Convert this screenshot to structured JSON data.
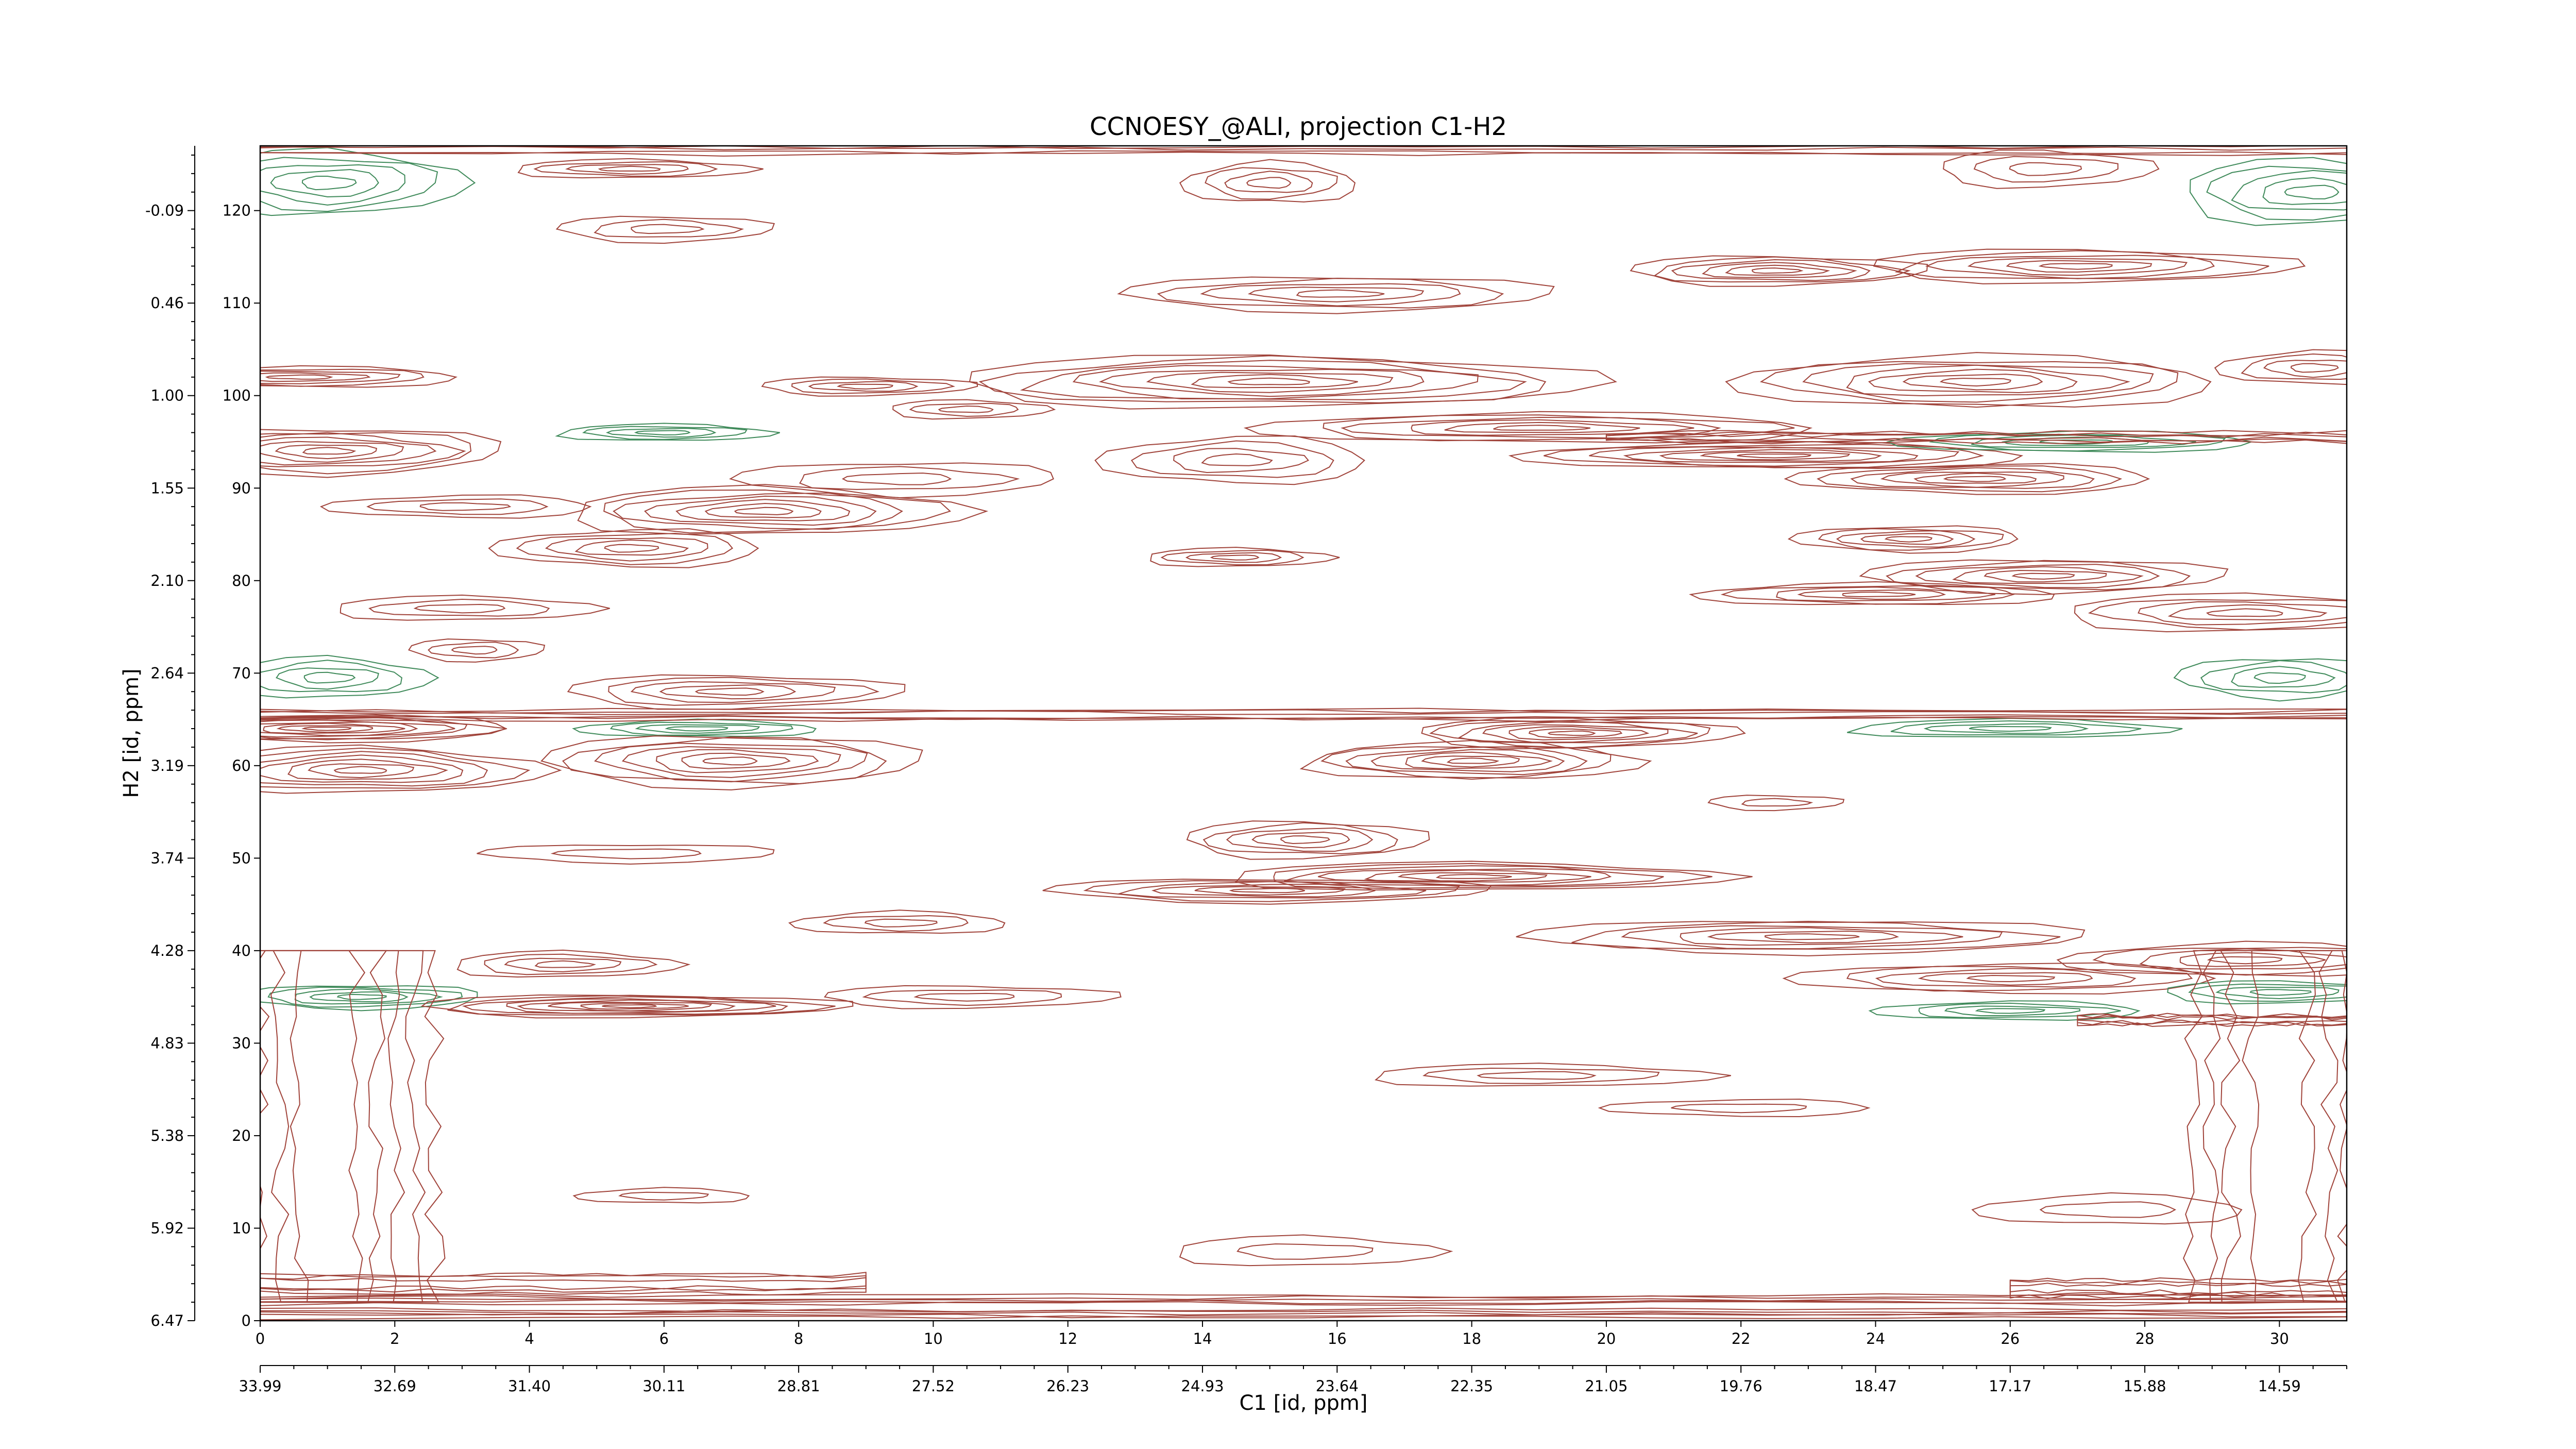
{
  "chart_data": {
    "type": "contour",
    "title": "CCNOESY_@ALI, projection C1-H2",
    "xlabel": "C1 [id, ppm]",
    "ylabel": "H2 [id, ppm]",
    "xlim": [
      0,
      31
    ],
    "ylim": [
      0,
      127
    ],
    "x_index_ticks": [
      0,
      2,
      4,
      6,
      8,
      10,
      12,
      14,
      16,
      18,
      20,
      22,
      24,
      26,
      28,
      30
    ],
    "x_ppm_ticks": [
      {
        "x": 0,
        "label": "33.99"
      },
      {
        "x": 2,
        "label": "32.69"
      },
      {
        "x": 4,
        "label": "31.40"
      },
      {
        "x": 6,
        "label": "30.11"
      },
      {
        "x": 8,
        "label": "28.81"
      },
      {
        "x": 10,
        "label": "27.52"
      },
      {
        "x": 12,
        "label": "26.23"
      },
      {
        "x": 14,
        "label": "24.93"
      },
      {
        "x": 16,
        "label": "23.64"
      },
      {
        "x": 18,
        "label": "22.35"
      },
      {
        "x": 20,
        "label": "21.05"
      },
      {
        "x": 22,
        "label": "19.76"
      },
      {
        "x": 24,
        "label": "18.47"
      },
      {
        "x": 26,
        "label": "17.17"
      },
      {
        "x": 28,
        "label": "15.88"
      },
      {
        "x": 30,
        "label": "14.59"
      }
    ],
    "y_index_ticks": [
      0,
      10,
      20,
      30,
      40,
      50,
      60,
      70,
      80,
      90,
      100,
      110,
      120
    ],
    "y_ppm_ticks": [
      {
        "y": 0,
        "label": "6.47"
      },
      {
        "y": 10,
        "label": "5.92"
      },
      {
        "y": 20,
        "label": "5.38"
      },
      {
        "y": 30,
        "label": "4.83"
      },
      {
        "y": 40,
        "label": "4.28"
      },
      {
        "y": 50,
        "label": "3.74"
      },
      {
        "y": 60,
        "label": "3.19"
      },
      {
        "y": 70,
        "label": "2.64"
      },
      {
        "y": 80,
        "label": "2.10"
      },
      {
        "y": 90,
        "label": "1.55"
      },
      {
        "y": 100,
        "label": "1.00"
      },
      {
        "y": 110,
        "label": "0.46"
      },
      {
        "y": 120,
        "label": "-0.09"
      }
    ],
    "colors": {
      "positive": "#a0433a",
      "negative": "#3f8a5a"
    },
    "peaks": [
      {
        "x": 1.0,
        "y": 94.0,
        "rx": 2.6,
        "ry": 2.5,
        "levels": 7,
        "sign": "positive"
      },
      {
        "x": 0.6,
        "y": 102.0,
        "rx": 2.4,
        "ry": 1.1,
        "levels": 5,
        "sign": "positive"
      },
      {
        "x": 1.0,
        "y": 64.0,
        "rx": 2.8,
        "ry": 1.4,
        "levels": 8,
        "sign": "positive"
      },
      {
        "x": 1.5,
        "y": 59.5,
        "rx": 2.7,
        "ry": 2.5,
        "levels": 7,
        "sign": "positive"
      },
      {
        "x": 1.0,
        "y": 123.0,
        "rx": 2.0,
        "ry": 3.5,
        "levels": 5,
        "sign": "negative"
      },
      {
        "x": 1.0,
        "y": 69.5,
        "rx": 1.5,
        "ry": 2.2,
        "levels": 4,
        "sign": "negative"
      },
      {
        "x": 1.5,
        "y": 35.0,
        "rx": 1.8,
        "ry": 1.3,
        "levels": 5,
        "sign": "negative"
      },
      {
        "x": 5.5,
        "y": 34.0,
        "rx": 3.2,
        "ry": 1.2,
        "levels": 8,
        "sign": "positive"
      },
      {
        "x": 3.2,
        "y": 72.5,
        "rx": 1.0,
        "ry": 1.2,
        "levels": 3,
        "sign": "positive"
      },
      {
        "x": 4.5,
        "y": 38.5,
        "rx": 1.7,
        "ry": 1.4,
        "levels": 4,
        "sign": "positive"
      },
      {
        "x": 6.0,
        "y": 96.0,
        "rx": 1.6,
        "ry": 0.9,
        "levels": 4,
        "sign": "negative"
      },
      {
        "x": 6.5,
        "y": 64.0,
        "rx": 1.8,
        "ry": 0.9,
        "levels": 4,
        "sign": "negative"
      },
      {
        "x": 7.0,
        "y": 60.5,
        "rx": 2.8,
        "ry": 2.8,
        "levels": 7,
        "sign": "positive"
      },
      {
        "x": 7.5,
        "y": 87.5,
        "rx": 3.0,
        "ry": 2.6,
        "levels": 7,
        "sign": "positive"
      },
      {
        "x": 5.5,
        "y": 83.5,
        "rx": 2.0,
        "ry": 2.0,
        "levels": 5,
        "sign": "positive"
      },
      {
        "x": 7.0,
        "y": 68.0,
        "rx": 2.5,
        "ry": 1.8,
        "levels": 5,
        "sign": "positive"
      },
      {
        "x": 15.0,
        "y": 101.5,
        "rx": 4.8,
        "ry": 2.8,
        "levels": 8,
        "sign": "positive"
      },
      {
        "x": 16.0,
        "y": 111.0,
        "rx": 3.2,
        "ry": 1.9,
        "levels": 5,
        "sign": "positive"
      },
      {
        "x": 14.5,
        "y": 93.0,
        "rx": 2.0,
        "ry": 2.5,
        "levels": 4,
        "sign": "positive"
      },
      {
        "x": 14.5,
        "y": 82.5,
        "rx": 1.4,
        "ry": 1.0,
        "levels": 4,
        "sign": "positive"
      },
      {
        "x": 19.0,
        "y": 96.5,
        "rx": 4.2,
        "ry": 1.6,
        "levels": 6,
        "sign": "positive"
      },
      {
        "x": 18.0,
        "y": 60.5,
        "rx": 2.5,
        "ry": 2.0,
        "levels": 7,
        "sign": "positive"
      },
      {
        "x": 19.5,
        "y": 63.5,
        "rx": 2.4,
        "ry": 1.6,
        "levels": 7,
        "sign": "positive"
      },
      {
        "x": 18.0,
        "y": 48.0,
        "rx": 3.8,
        "ry": 1.5,
        "levels": 7,
        "sign": "positive"
      },
      {
        "x": 15.0,
        "y": 46.5,
        "rx": 3.3,
        "ry": 1.3,
        "levels": 6,
        "sign": "positive"
      },
      {
        "x": 15.5,
        "y": 52.0,
        "rx": 1.8,
        "ry": 2.0,
        "levels": 5,
        "sign": "positive"
      },
      {
        "x": 22.5,
        "y": 113.5,
        "rx": 2.2,
        "ry": 1.6,
        "levels": 6,
        "sign": "positive"
      },
      {
        "x": 27.0,
        "y": 114.0,
        "rx": 3.2,
        "ry": 1.8,
        "levels": 6,
        "sign": "positive"
      },
      {
        "x": 25.5,
        "y": 101.5,
        "rx": 3.6,
        "ry": 2.8,
        "levels": 7,
        "sign": "positive"
      },
      {
        "x": 22.5,
        "y": 93.5,
        "rx": 3.8,
        "ry": 1.4,
        "levels": 7,
        "sign": "positive"
      },
      {
        "x": 25.5,
        "y": 91.0,
        "rx": 2.7,
        "ry": 1.6,
        "levels": 6,
        "sign": "positive"
      },
      {
        "x": 27.0,
        "y": 95.0,
        "rx": 2.7,
        "ry": 1.1,
        "levels": 5,
        "sign": "negative"
      },
      {
        "x": 24.5,
        "y": 84.5,
        "rx": 1.7,
        "ry": 1.4,
        "levels": 5,
        "sign": "positive"
      },
      {
        "x": 26.5,
        "y": 80.5,
        "rx": 2.7,
        "ry": 1.8,
        "levels": 6,
        "sign": "positive"
      },
      {
        "x": 24.0,
        "y": 78.5,
        "rx": 2.7,
        "ry": 1.2,
        "levels": 5,
        "sign": "positive"
      },
      {
        "x": 29.5,
        "y": 76.5,
        "rx": 2.8,
        "ry": 2.0,
        "levels": 5,
        "sign": "positive"
      },
      {
        "x": 23.0,
        "y": 41.5,
        "rx": 4.2,
        "ry": 1.8,
        "levels": 6,
        "sign": "positive"
      },
      {
        "x": 26.0,
        "y": 37.0,
        "rx": 3.2,
        "ry": 1.6,
        "levels": 5,
        "sign": "positive"
      },
      {
        "x": 26.0,
        "y": 33.5,
        "rx": 2.0,
        "ry": 1.0,
        "levels": 4,
        "sign": "negative"
      },
      {
        "x": 29.5,
        "y": 39.0,
        "rx": 2.7,
        "ry": 1.8,
        "levels": 5,
        "sign": "positive"
      },
      {
        "x": 30.0,
        "y": 35.5,
        "rx": 1.8,
        "ry": 1.2,
        "levels": 4,
        "sign": "negative"
      },
      {
        "x": 26.0,
        "y": 64.0,
        "rx": 2.4,
        "ry": 1.0,
        "levels": 4,
        "sign": "negative"
      },
      {
        "x": 30.0,
        "y": 69.5,
        "rx": 1.5,
        "ry": 2.2,
        "levels": 4,
        "sign": "negative"
      },
      {
        "x": 30.5,
        "y": 122.0,
        "rx": 2.0,
        "ry": 3.5,
        "levels": 5,
        "sign": "negative"
      },
      {
        "x": 30.5,
        "y": 103.0,
        "rx": 1.4,
        "ry": 1.8,
        "levels": 4,
        "sign": "positive"
      },
      {
        "x": 9.0,
        "y": 101.0,
        "rx": 1.6,
        "ry": 1.0,
        "levels": 4,
        "sign": "positive"
      },
      {
        "x": 10.5,
        "y": 98.5,
        "rx": 1.2,
        "ry": 1.0,
        "levels": 3,
        "sign": "positive"
      },
      {
        "x": 15.0,
        "y": 123.0,
        "rx": 1.3,
        "ry": 2.2,
        "levels": 4,
        "sign": "positive"
      },
      {
        "x": 6.0,
        "y": 118.0,
        "rx": 1.6,
        "ry": 1.4,
        "levels": 3,
        "sign": "positive"
      },
      {
        "x": 5.5,
        "y": 124.5,
        "rx": 1.8,
        "ry": 1.0,
        "levels": 4,
        "sign": "positive"
      },
      {
        "x": 26.5,
        "y": 124.5,
        "rx": 1.6,
        "ry": 2.0,
        "levels": 3,
        "sign": "positive"
      },
      {
        "x": 3.0,
        "y": 77.0,
        "rx": 2.0,
        "ry": 1.3,
        "levels": 3,
        "sign": "positive"
      },
      {
        "x": 3.0,
        "y": 88.0,
        "rx": 2.0,
        "ry": 1.2,
        "levels": 3,
        "sign": "positive"
      },
      {
        "x": 9.5,
        "y": 91.0,
        "rx": 2.4,
        "ry": 1.8,
        "levels": 3,
        "sign": "positive"
      },
      {
        "x": 9.5,
        "y": 43.0,
        "rx": 1.6,
        "ry": 1.2,
        "levels": 3,
        "sign": "positive"
      },
      {
        "x": 10.5,
        "y": 35.0,
        "rx": 2.2,
        "ry": 1.2,
        "levels": 3,
        "sign": "positive"
      },
      {
        "x": 19.0,
        "y": 26.5,
        "rx": 2.6,
        "ry": 1.2,
        "levels": 3,
        "sign": "positive"
      },
      {
        "x": 22.0,
        "y": 23.0,
        "rx": 2.0,
        "ry": 0.9,
        "levels": 2,
        "sign": "positive"
      },
      {
        "x": 5.5,
        "y": 50.5,
        "rx": 2.2,
        "ry": 1.0,
        "levels": 2,
        "sign": "positive"
      },
      {
        "x": 22.5,
        "y": 56.0,
        "rx": 1.0,
        "ry": 0.8,
        "levels": 2,
        "sign": "positive"
      },
      {
        "x": 15.5,
        "y": 7.5,
        "rx": 2.0,
        "ry": 1.6,
        "levels": 2,
        "sign": "positive"
      },
      {
        "x": 27.5,
        "y": 12.0,
        "rx": 2.0,
        "ry": 1.6,
        "levels": 2,
        "sign": "positive"
      },
      {
        "x": 6.0,
        "y": 13.5,
        "rx": 1.3,
        "ry": 0.8,
        "levels": 2,
        "sign": "positive"
      }
    ],
    "ridges": [
      {
        "x0": 0,
        "x1": 31,
        "y": 1.5,
        "thick": 1.2,
        "levels": 5,
        "sign": "positive"
      },
      {
        "x0": 0,
        "x1": 9,
        "y": 4.0,
        "thick": 1.0,
        "levels": 3,
        "sign": "positive"
      },
      {
        "x0": 26,
        "x1": 31,
        "y": 3.5,
        "thick": 0.9,
        "levels": 3,
        "sign": "positive"
      },
      {
        "x0": 0,
        "x1": 31,
        "y": 65.5,
        "thick": 0.5,
        "levels": 3,
        "sign": "positive"
      },
      {
        "x0": 20,
        "x1": 31,
        "y": 95.5,
        "thick": 0.5,
        "levels": 3,
        "sign": "positive"
      },
      {
        "x0": 0,
        "x1": 31,
        "y": 126.5,
        "thick": 0.4,
        "levels": 2,
        "sign": "positive"
      },
      {
        "x0": 27,
        "x1": 31,
        "y": 32.5,
        "thick": 0.5,
        "levels": 3,
        "sign": "positive"
      }
    ],
    "columns": [
      {
        "x": 1.0,
        "y0": 2,
        "y1": 40,
        "width": 1.6,
        "levels": 5,
        "sign": "positive"
      },
      {
        "x": 30.0,
        "y0": 2,
        "y1": 40,
        "width": 1.3,
        "levels": 4,
        "sign": "positive"
      }
    ]
  }
}
